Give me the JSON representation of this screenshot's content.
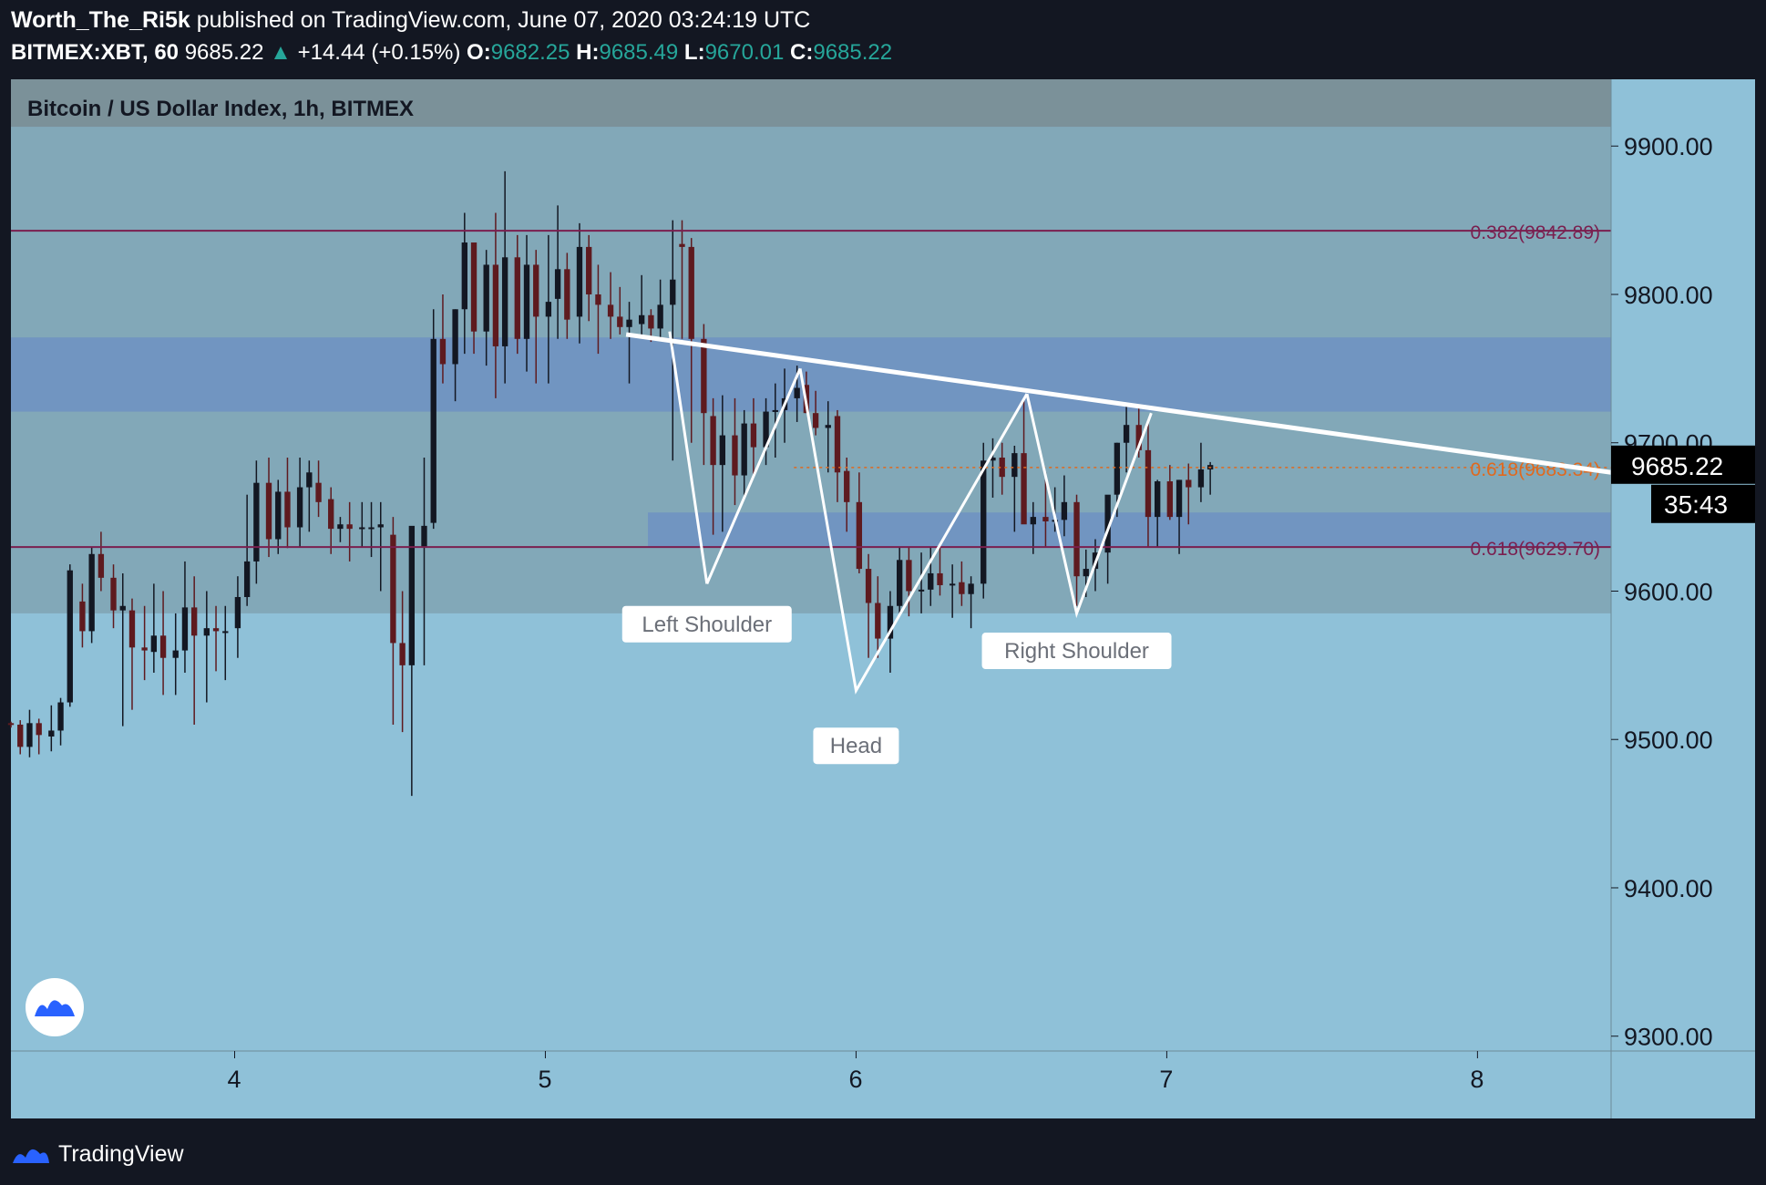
{
  "header": {
    "author": "Worth_The_Ri5k",
    "published": "published on TradingView.com, June 07, 2020 03:24:19 UTC",
    "symbol": "BITMEX:XBT, 60",
    "last": "9685.22",
    "change": "+14.44 (+0.15%)",
    "o_label": "O:",
    "o": "9682.25",
    "h_label": "H:",
    "h": "9685.49",
    "l_label": "L:",
    "l": "9670.01",
    "c_label": "C:",
    "c": "9685.22"
  },
  "footer": {
    "brand": "TradingView"
  },
  "colors": {
    "bg": "#131722",
    "plot": "#8fc1d8",
    "zone": "#82a8b8",
    "darkzone": "#7b9199",
    "blue": "#7195c1",
    "bull": "#131722",
    "bear": "#5e1a1f",
    "fib": "#7a1f4f",
    "fib_orange": "#e0691e",
    "lines": "#ffffff"
  },
  "chart_data": {
    "type": "candlestick",
    "title": "Bitcoin / US Dollar Index, 1h, BITMEX",
    "x_ticks": [
      "4",
      "5",
      "6",
      "7",
      "8"
    ],
    "y_ticks": [
      "9900.00",
      "9800.00",
      "9700.00",
      "9600.00",
      "9500.00",
      "9400.00",
      "9300.00"
    ],
    "ylim": [
      9290,
      9945
    ],
    "xlim": [
      3.28,
      8.43
    ],
    "last_price": "9685.22",
    "countdown": "35:43",
    "fib_levels": [
      {
        "label": "0.382(9842.89)",
        "value": 9842.89,
        "color": "#7a1f4f",
        "line": true
      },
      {
        "label": "0.618(9683.34)",
        "value": 9683.34,
        "color": "#e0691e",
        "line": false
      },
      {
        "label": "0.618(9629.70)",
        "value": 9629.7,
        "color": "#7a1f4f",
        "line": true
      }
    ],
    "zones": [
      {
        "name": "supply",
        "from": 9585,
        "to": 9958,
        "x_from": 3.28
      },
      {
        "name": "upper-band",
        "from": 9913,
        "to": 9958,
        "x_from": 3.28
      },
      {
        "name": "blue-resistance",
        "from": 9721,
        "to": 9771,
        "x_from": 3.28
      },
      {
        "name": "blue-support",
        "from": 9630,
        "to": 9653,
        "x_from": 5.33
      }
    ],
    "annotations": [
      "Left Shoulder",
      "Head",
      "Right Shoulder"
    ],
    "pattern": {
      "neckline": [
        [
          5.26,
          9773
        ],
        [
          8.43,
          9680
        ]
      ],
      "left_shoulder": [
        [
          5.52,
          9605
        ],
        [
          5.82,
          9750
        ]
      ],
      "head_left": [
        [
          5.82,
          9750
        ],
        [
          6.0,
          9533
        ],
        [
          6.55,
          9733
        ]
      ],
      "right_shoulder": [
        [
          6.55,
          9733
        ],
        [
          6.71,
          9585
        ],
        [
          6.95,
          9720
        ]
      ]
    },
    "series": [
      {
        "values": [
          [
            3.28,
            9511,
            9512,
            9508,
            9510
          ],
          [
            3.31,
            9510,
            9513,
            9490,
            9495
          ],
          [
            3.34,
            9495,
            9520,
            9488,
            9511
          ],
          [
            3.37,
            9511,
            9514,
            9490,
            9503
          ],
          [
            3.41,
            9502,
            9523,
            9492,
            9506
          ],
          [
            3.44,
            9506,
            9528,
            9496,
            9525
          ],
          [
            3.47,
            9525,
            9618,
            9522,
            9614
          ],
          [
            3.51,
            9593,
            9605,
            9562,
            9573
          ],
          [
            3.54,
            9573,
            9630,
            9565,
            9625
          ],
          [
            3.57,
            9625,
            9640,
            9600,
            9609
          ],
          [
            3.61,
            9609,
            9618,
            9575,
            9587
          ],
          [
            3.64,
            9587,
            9612,
            9509,
            9590
          ],
          [
            3.67,
            9587,
            9595,
            9520,
            9562
          ],
          [
            3.71,
            9562,
            9590,
            9540,
            9560
          ],
          [
            3.74,
            9559,
            9605,
            9545,
            9570
          ],
          [
            3.77,
            9570,
            9600,
            9530,
            9555
          ],
          [
            3.81,
            9555,
            9585,
            9530,
            9560
          ],
          [
            3.84,
            9560,
            9620,
            9545,
            9589
          ],
          [
            3.87,
            9589,
            9610,
            9510,
            9570
          ],
          [
            3.91,
            9570,
            9600,
            9525,
            9575
          ],
          [
            3.94,
            9575,
            9590,
            9546,
            9573
          ],
          [
            3.97,
            9573,
            9590,
            9540,
            9573
          ],
          [
            4.01,
            9575,
            9610,
            9555,
            9596
          ],
          [
            4.04,
            9596,
            9665,
            9590,
            9620
          ],
          [
            4.07,
            9620,
            9688,
            9605,
            9673
          ],
          [
            4.11,
            9673,
            9690,
            9623,
            9635
          ],
          [
            4.14,
            9635,
            9675,
            9625,
            9667
          ],
          [
            4.17,
            9667,
            9690,
            9629,
            9643
          ],
          [
            4.21,
            9643,
            9690,
            9630,
            9670
          ],
          [
            4.24,
            9670,
            9688,
            9640,
            9680
          ],
          [
            4.27,
            9673,
            9688,
            9650,
            9660
          ],
          [
            4.31,
            9662,
            9670,
            9625,
            9642
          ],
          [
            4.34,
            9642,
            9650,
            9633,
            9645
          ],
          [
            4.37,
            9645,
            9660,
            9620,
            9642
          ],
          [
            4.41,
            9642,
            9660,
            9630,
            9643
          ],
          [
            4.44,
            9643,
            9660,
            9623,
            9643
          ],
          [
            4.47,
            9643,
            9660,
            9600,
            9645
          ],
          [
            4.51,
            9638,
            9650,
            9510,
            9565
          ],
          [
            4.54,
            9565,
            9600,
            9505,
            9550
          ],
          [
            4.57,
            9550,
            9630,
            9462,
            9644
          ],
          [
            4.61,
            9630,
            9690,
            9550,
            9644
          ],
          [
            4.64,
            9646,
            9790,
            9642,
            9770
          ],
          [
            4.67,
            9770,
            9800,
            9740,
            9753
          ],
          [
            4.71,
            9753,
            9790,
            9728,
            9790
          ],
          [
            4.74,
            9790,
            9855,
            9760,
            9835
          ],
          [
            4.77,
            9835,
            9830,
            9760,
            9775
          ],
          [
            4.81,
            9775,
            9830,
            9752,
            9820
          ],
          [
            4.84,
            9820,
            9855,
            9730,
            9765
          ],
          [
            4.87,
            9765,
            9883,
            9740,
            9825
          ],
          [
            4.91,
            9825,
            9840,
            9760,
            9770
          ],
          [
            4.94,
            9770,
            9840,
            9748,
            9820
          ],
          [
            4.97,
            9820,
            9830,
            9740,
            9785
          ],
          [
            5.01,
            9785,
            9840,
            9740,
            9795
          ],
          [
            5.04,
            9797,
            9860,
            9770,
            9817
          ],
          [
            5.07,
            9817,
            9828,
            9770,
            9783
          ],
          [
            5.11,
            9785,
            9848,
            9767,
            9832
          ],
          [
            5.14,
            9832,
            9840,
            9782,
            9800
          ],
          [
            5.17,
            9800,
            9820,
            9760,
            9793
          ],
          [
            5.21,
            9793,
            9815,
            9770,
            9785
          ],
          [
            5.24,
            9785,
            9805,
            9773,
            9778
          ],
          [
            5.27,
            9778,
            9795,
            9740,
            9783
          ],
          [
            5.31,
            9780,
            9813,
            9773,
            9786
          ],
          [
            5.34,
            9786,
            9790,
            9768,
            9777
          ],
          [
            5.37,
            9777,
            9810,
            9770,
            9793
          ],
          [
            5.41,
            9793,
            9850,
            9688,
            9810
          ],
          [
            5.44,
            9834,
            9850,
            9770,
            9832
          ],
          [
            5.47,
            9832,
            9838,
            9700,
            9770
          ],
          [
            5.51,
            9770,
            9780,
            9685,
            9720
          ],
          [
            5.54,
            9718,
            9730,
            9638,
            9685
          ],
          [
            5.57,
            9685,
            9732,
            9640,
            9705
          ],
          [
            5.61,
            9705,
            9730,
            9658,
            9678
          ],
          [
            5.64,
            9678,
            9722,
            9663,
            9713
          ],
          [
            5.67,
            9713,
            9730,
            9678,
            9697
          ],
          [
            5.71,
            9697,
            9730,
            9685,
            9721
          ],
          [
            5.74,
            9721,
            9740,
            9690,
            9722
          ],
          [
            5.77,
            9722,
            9750,
            9700,
            9730
          ],
          [
            5.81,
            9730,
            9752,
            9714,
            9737
          ],
          [
            5.84,
            9739,
            9748,
            9720,
            9720
          ],
          [
            5.87,
            9720,
            9735,
            9705,
            9710
          ],
          [
            5.91,
            9710,
            9728,
            9680,
            9712
          ],
          [
            5.94,
            9718,
            9722,
            9660,
            9680
          ],
          [
            5.97,
            9681,
            9690,
            9640,
            9660
          ],
          [
            6.01,
            9660,
            9680,
            9612,
            9615
          ],
          [
            6.04,
            9615,
            9625,
            9555,
            9592
          ],
          [
            6.07,
            9592,
            9610,
            9555,
            9568
          ],
          [
            6.11,
            9568,
            9600,
            9545,
            9590
          ],
          [
            6.14,
            9590,
            9630,
            9583,
            9621
          ],
          [
            6.17,
            9621,
            9630,
            9583,
            9600
          ],
          [
            6.21,
            9600,
            9626,
            9585,
            9601
          ],
          [
            6.24,
            9601,
            9630,
            9590,
            9612
          ],
          [
            6.27,
            9612,
            9630,
            9597,
            9604
          ],
          [
            6.31,
            9604,
            9618,
            9582,
            9605
          ],
          [
            6.34,
            9606,
            9620,
            9590,
            9598
          ],
          [
            6.37,
            9598,
            9610,
            9575,
            9605
          ],
          [
            6.41,
            9605,
            9700,
            9595,
            9688
          ],
          [
            6.44,
            9688,
            9703,
            9663,
            9690
          ],
          [
            6.47,
            9690,
            9700,
            9665,
            9677
          ],
          [
            6.51,
            9677,
            9698,
            9640,
            9693
          ],
          [
            6.54,
            9693,
            9730,
            9655,
            9645
          ],
          [
            6.57,
            9645,
            9660,
            9625,
            9650
          ],
          [
            6.61,
            9650,
            9680,
            9630,
            9647
          ],
          [
            6.64,
            9647,
            9670,
            9640,
            9648
          ],
          [
            6.67,
            9648,
            9678,
            9637,
            9660
          ],
          [
            6.71,
            9660,
            9665,
            9590,
            9610
          ],
          [
            6.74,
            9610,
            9628,
            9596,
            9615
          ],
          [
            6.77,
            9615,
            9635,
            9600,
            9626
          ],
          [
            6.81,
            9626,
            9652,
            9605,
            9665
          ],
          [
            6.84,
            9665,
            9700,
            9650,
            9700
          ],
          [
            6.87,
            9700,
            9726,
            9680,
            9712
          ],
          [
            6.91,
            9712,
            9726,
            9690,
            9695
          ],
          [
            6.94,
            9695,
            9716,
            9630,
            9650
          ],
          [
            6.97,
            9650,
            9675,
            9630,
            9674
          ],
          [
            7.01,
            9674,
            9685,
            9648,
            9650
          ],
          [
            7.04,
            9650,
            9675,
            9625,
            9675
          ],
          [
            7.07,
            9675,
            9686,
            9645,
            9670
          ],
          [
            7.11,
            9670,
            9700,
            9660,
            9682
          ],
          [
            7.14,
            9682,
            9687,
            9665,
            9685
          ]
        ]
      }
    ]
  }
}
